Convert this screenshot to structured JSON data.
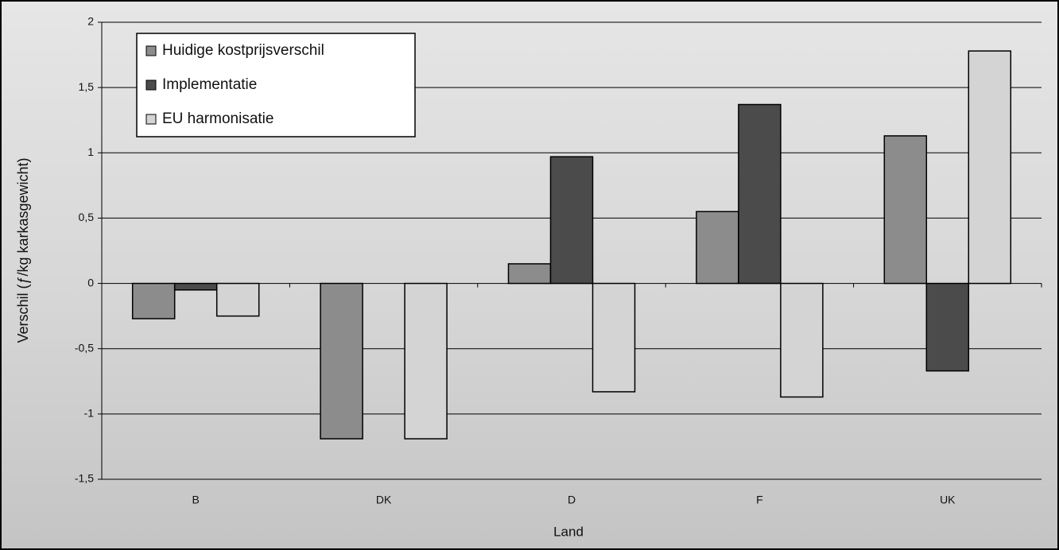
{
  "chart_data": {
    "type": "bar",
    "y_label": "Verschil (ƒ/kg karkasgewicht)",
    "x_label": "Land",
    "categories": [
      "B",
      "DK",
      "D",
      "F",
      "UK"
    ],
    "series": [
      {
        "name": "Huidige kostprijsverschil",
        "color": "#8c8c8c",
        "values": [
          -0.27,
          -1.19,
          0.15,
          0.55,
          1.13
        ]
      },
      {
        "name": "Implementatie",
        "color": "#4b4b4b",
        "values": [
          -0.05,
          0,
          0.97,
          1.37,
          -0.67
        ]
      },
      {
        "name": "EU harmonisatie",
        "color": "#d4d4d4",
        "values": [
          -0.25,
          -1.19,
          -0.83,
          -0.87,
          1.78
        ]
      }
    ],
    "ylim": [
      -1.5,
      2
    ],
    "yticks": [
      {
        "value": -1.5,
        "label": "-1,5"
      },
      -1,
      {
        "value": -0.5,
        "label": "-0,5"
      },
      0,
      {
        "value": 0.5,
        "label": "0,5"
      },
      1,
      {
        "value": 1.5,
        "label": "1,5"
      },
      2
    ],
    "grid": true,
    "legend": "top-left"
  }
}
